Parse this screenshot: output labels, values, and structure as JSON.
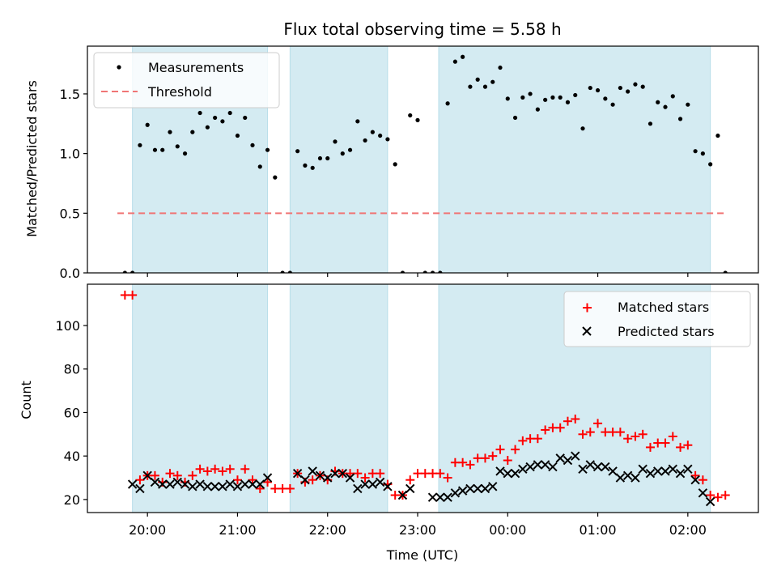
{
  "chart_data": [
    {
      "type": "scatter",
      "title": "Flux total observing time = 5.58 h",
      "ylabel": "Matched/Predicted stars",
      "xlabel": "",
      "xlim": [
        "19:20",
        "02:47"
      ],
      "ylim": [
        0,
        1.9
      ],
      "yticks": [
        0.0,
        0.5,
        1.0,
        1.5
      ],
      "ytick_labels": [
        "0.0",
        "0.5",
        "1.0",
        "1.5"
      ],
      "grid": false,
      "legend": {
        "placement": "top-left",
        "entries": [
          "Measurements",
          "Threshold"
        ]
      },
      "shaded_intervals": [
        [
          "19:50",
          "21:20"
        ],
        [
          "21:35",
          "22:40"
        ],
        [
          "23:14",
          "02:15"
        ]
      ],
      "threshold": {
        "name": "Threshold",
        "value": 0.5,
        "x_range": [
          "19:40",
          "02:25"
        ],
        "color": "#f07575"
      },
      "series": [
        {
          "name": "Measurements",
          "color": "#000000",
          "marker": "dot",
          "x": [
            "19:45",
            "19:50",
            "19:55",
            "20:00",
            "20:05",
            "20:10",
            "20:15",
            "20:20",
            "20:25",
            "20:30",
            "20:35",
            "20:40",
            "20:45",
            "20:50",
            "20:55",
            "21:00",
            "21:05",
            "21:10",
            "21:15",
            "21:20",
            "21:25",
            "21:30",
            "21:35",
            "21:40",
            "21:45",
            "21:50",
            "21:55",
            "22:00",
            "22:05",
            "22:10",
            "22:15",
            "22:20",
            "22:25",
            "22:30",
            "22:35",
            "22:40",
            "22:45",
            "22:50",
            "22:55",
            "23:00",
            "23:05",
            "23:10",
            "23:15",
            "23:20",
            "23:25",
            "23:30",
            "23:35",
            "23:40",
            "23:45",
            "23:50",
            "23:55",
            "00:00",
            "00:05",
            "00:10",
            "00:15",
            "00:20",
            "00:25",
            "00:30",
            "00:35",
            "00:40",
            "00:45",
            "00:50",
            "00:55",
            "01:00",
            "01:05",
            "01:10",
            "01:15",
            "01:20",
            "01:25",
            "01:30",
            "01:35",
            "01:40",
            "01:45",
            "01:50",
            "01:55",
            "02:00",
            "02:05",
            "02:10",
            "02:15",
            "02:20",
            "02:25"
          ],
          "y": [
            0,
            0,
            1.07,
            1.24,
            1.03,
            1.03,
            1.18,
            1.06,
            1.0,
            1.18,
            1.34,
            1.22,
            1.3,
            1.27,
            1.34,
            1.15,
            1.3,
            1.07,
            0.89,
            1.03,
            0.8,
            0,
            0,
            1.02,
            0.9,
            0.88,
            0.96,
            0.96,
            1.1,
            1.0,
            1.03,
            1.27,
            1.11,
            1.18,
            1.15,
            1.12,
            0.91,
            0,
            1.32,
            1.28,
            0,
            0,
            0,
            1.42,
            1.77,
            1.81,
            1.56,
            1.62,
            1.56,
            1.6,
            1.72,
            1.46,
            1.3,
            1.47,
            1.5,
            1.37,
            1.45,
            1.47,
            1.47,
            1.43,
            1.49,
            1.21,
            1.55,
            1.53,
            1.46,
            1.41,
            1.55,
            1.52,
            1.58,
            1.56,
            1.25,
            1.43,
            1.39,
            1.48,
            1.29,
            1.41,
            1.02,
            1.0,
            0.91,
            1.15,
            0
          ]
        }
      ]
    },
    {
      "type": "scatter",
      "title": "",
      "ylabel": "Count",
      "xlabel": "Time (UTC)",
      "xlim": [
        "19:20",
        "02:47"
      ],
      "ylim": [
        14,
        119
      ],
      "yticks": [
        20,
        40,
        60,
        80,
        100
      ],
      "ytick_labels": [
        "20",
        "40",
        "60",
        "80",
        "100"
      ],
      "xticks": [
        "20:00",
        "21:00",
        "22:00",
        "23:00",
        "00:00",
        "01:00",
        "02:00"
      ],
      "grid": false,
      "legend": {
        "placement": "top-right",
        "entries": [
          "Matched stars",
          "Predicted stars"
        ]
      },
      "shaded_intervals": [
        [
          "19:50",
          "21:20"
        ],
        [
          "21:35",
          "22:40"
        ],
        [
          "23:14",
          "02:15"
        ]
      ],
      "series": [
        {
          "name": "Matched stars",
          "color": "#ff0000",
          "marker": "plus",
          "x": [
            "19:45",
            "19:50",
            "19:55",
            "20:00",
            "20:05",
            "20:10",
            "20:15",
            "20:20",
            "20:25",
            "20:30",
            "20:35",
            "20:40",
            "20:45",
            "20:50",
            "20:55",
            "21:00",
            "21:05",
            "21:10",
            "21:15",
            "21:20",
            "21:25",
            "21:30",
            "21:35",
            "21:40",
            "21:45",
            "21:50",
            "21:55",
            "22:00",
            "22:05",
            "22:10",
            "22:15",
            "22:20",
            "22:25",
            "22:30",
            "22:35",
            "22:40",
            "22:45",
            "22:50",
            "22:55",
            "23:00",
            "23:05",
            "23:10",
            "23:15",
            "23:20",
            "23:25",
            "23:30",
            "23:35",
            "23:40",
            "23:45",
            "23:50",
            "23:55",
            "00:00",
            "00:05",
            "00:10",
            "00:15",
            "00:20",
            "00:25",
            "00:30",
            "00:35",
            "00:40",
            "00:45",
            "00:50",
            "00:55",
            "01:00",
            "01:05",
            "01:10",
            "01:15",
            "01:20",
            "01:25",
            "01:30",
            "01:35",
            "01:40",
            "01:45",
            "01:50",
            "01:55",
            "02:00",
            "02:05",
            "02:10",
            "02:15",
            "02:20",
            "02:25"
          ],
          "y": [
            114,
            114,
            29,
            31,
            31,
            28,
            32,
            31,
            28,
            31,
            34,
            33,
            34,
            33,
            34,
            29,
            34,
            29,
            25,
            28,
            25,
            25,
            25,
            32,
            28,
            29,
            31,
            29,
            33,
            32,
            32,
            32,
            30,
            32,
            32,
            27,
            22,
            22,
            29,
            32,
            32,
            32,
            32,
            30,
            37,
            37,
            36,
            39,
            39,
            40,
            43,
            38,
            43,
            47,
            48,
            48,
            52,
            53,
            53,
            56,
            57,
            50,
            51,
            55,
            51,
            51,
            51,
            48,
            49,
            50,
            44,
            46,
            46,
            49,
            44,
            45,
            31,
            29,
            22,
            21,
            22
          ]
        },
        {
          "name": "Predicted stars",
          "color": "#000000",
          "marker": "cross",
          "x": [
            "19:50",
            "19:55",
            "20:00",
            "20:05",
            "20:10",
            "20:15",
            "20:20",
            "20:25",
            "20:30",
            "20:35",
            "20:40",
            "20:45",
            "20:50",
            "20:55",
            "21:00",
            "21:05",
            "21:10",
            "21:15",
            "21:20",
            "21:40",
            "21:45",
            "21:50",
            "21:55",
            "22:00",
            "22:05",
            "22:10",
            "22:15",
            "22:20",
            "22:25",
            "22:30",
            "22:35",
            "22:40",
            "22:50",
            "22:55",
            "23:10",
            "23:15",
            "23:20",
            "23:25",
            "23:30",
            "23:35",
            "23:40",
            "23:45",
            "23:50",
            "23:55",
            "00:00",
            "00:05",
            "00:10",
            "00:15",
            "00:20",
            "00:25",
            "00:30",
            "00:35",
            "00:40",
            "00:45",
            "00:50",
            "00:55",
            "01:00",
            "01:05",
            "01:10",
            "01:15",
            "01:20",
            "01:25",
            "01:30",
            "01:35",
            "01:40",
            "01:45",
            "01:50",
            "01:55",
            "02:00",
            "02:05",
            "02:10",
            "02:15"
          ],
          "y": [
            27,
            25,
            31,
            28,
            27,
            27,
            28,
            27,
            26,
            27,
            26,
            26,
            26,
            27,
            26,
            27,
            27,
            27,
            30,
            32,
            29,
            33,
            31,
            30,
            32,
            32,
            30,
            25,
            27,
            27,
            28,
            26,
            22,
            25,
            21,
            21,
            21,
            23,
            24,
            25,
            25,
            25,
            26,
            33,
            32,
            32,
            34,
            35,
            36,
            36,
            35,
            39,
            38,
            40,
            34,
            36,
            35,
            35,
            33,
            30,
            31,
            30,
            34,
            32,
            33,
            33,
            34,
            32,
            34,
            29,
            23,
            19
          ]
        }
      ]
    }
  ]
}
